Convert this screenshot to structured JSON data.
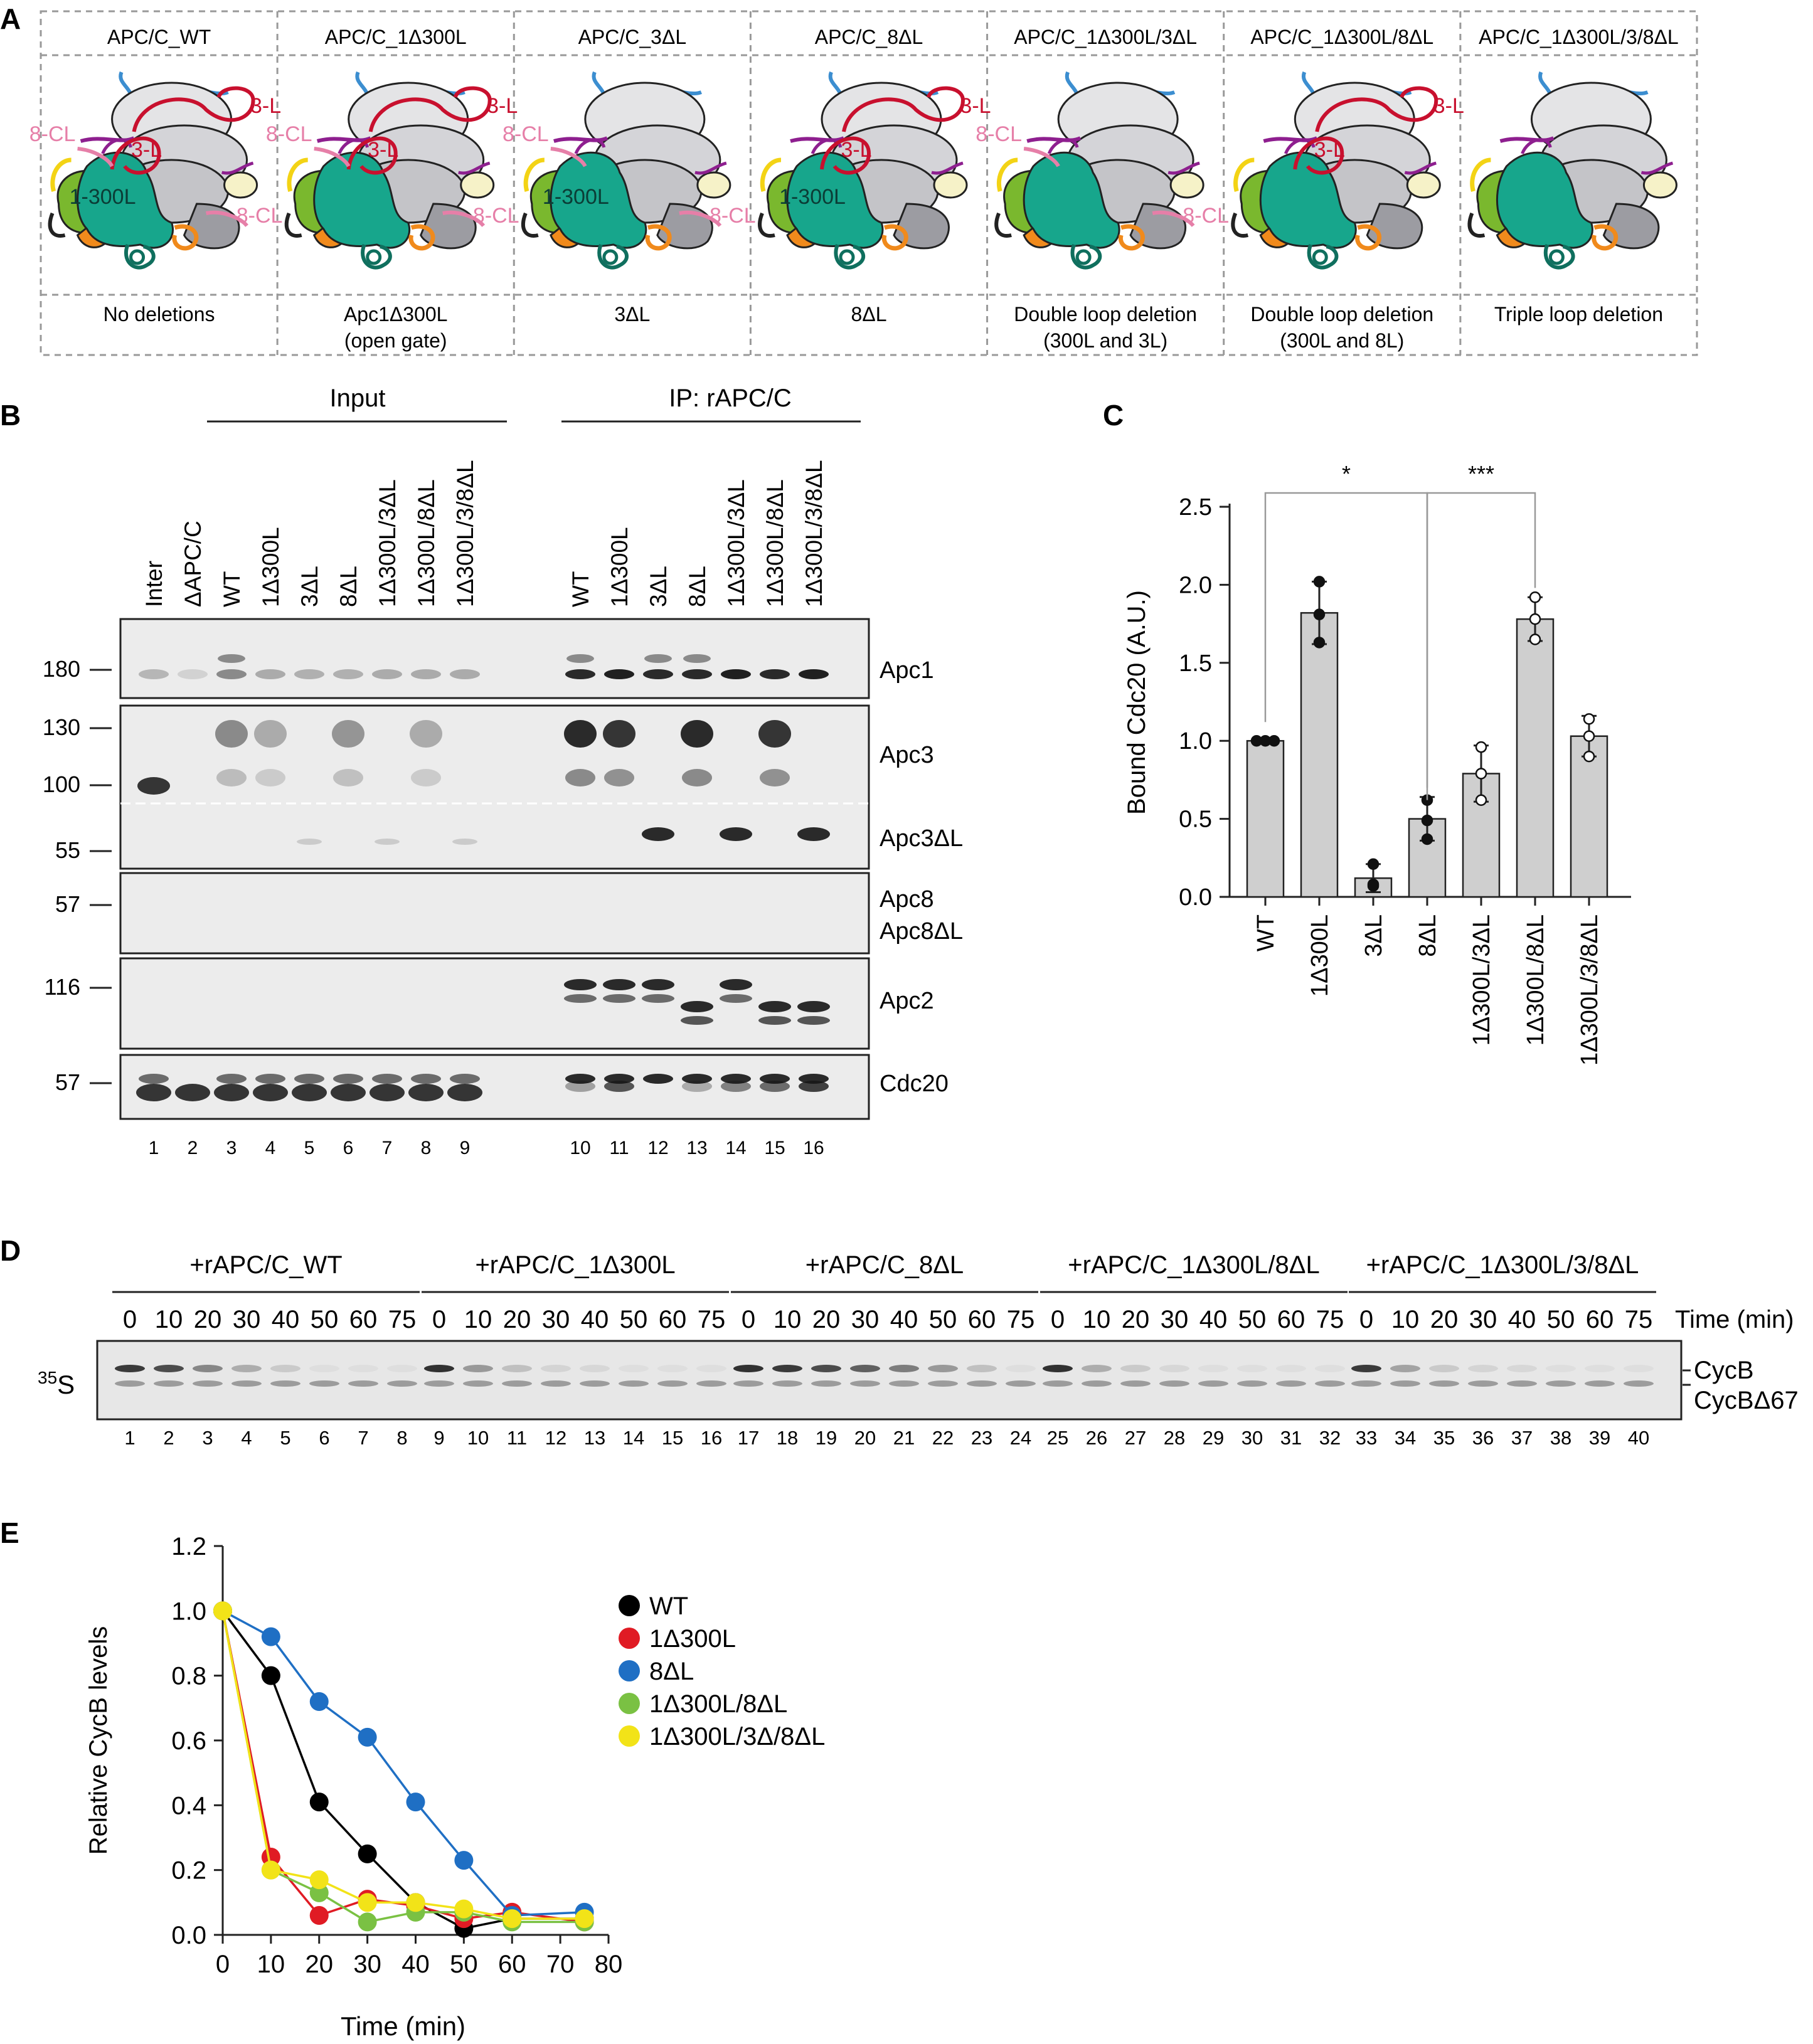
{
  "panel_labels": {
    "a": "A",
    "b": "B",
    "c": "C",
    "d": "D",
    "e": "E"
  },
  "panel_a": {
    "columns": [
      {
        "title": "APC/C_WT",
        "caption": [
          "No deletions"
        ],
        "labels": [
          "3-L",
          "8-CL",
          "3-L",
          "1-300L",
          "8-CL"
        ]
      },
      {
        "title": "APC/C_1Δ300L",
        "caption": [
          "Apc1Δ300L",
          "(open gate)"
        ],
        "labels": [
          "3-L",
          "8-CL",
          "3-L",
          "8-CL"
        ]
      },
      {
        "title": "APC/C_3ΔL",
        "caption": [
          "3ΔL"
        ],
        "labels": [
          "8-CL",
          "1-300L",
          "8-CL"
        ]
      },
      {
        "title": "APC/C_8ΔL",
        "caption": [
          "8ΔL"
        ],
        "labels": [
          "3-L",
          "3-L",
          "1-300L"
        ]
      },
      {
        "title": "APC/C_1Δ300L/3ΔL",
        "caption": [
          "Double loop deletion",
          "(300L and 3L)"
        ],
        "labels": [
          "8-CL",
          "8-CL"
        ]
      },
      {
        "title": "APC/C_1Δ300L/8ΔL",
        "caption": [
          "Double loop deletion",
          "(300L and 8L)"
        ],
        "labels": [
          "3-L",
          "3-L"
        ]
      },
      {
        "title": "APC/C_1Δ300L/3/8ΔL",
        "caption": [
          "Triple loop deletion"
        ],
        "labels": []
      }
    ]
  },
  "panel_b": {
    "input_header": "Input",
    "ip_header": "IP: rAPC/C",
    "lane_labels": [
      "Inter",
      "ΔAPC/C",
      "WT",
      "1Δ300L",
      "3ΔL",
      "8ΔL",
      "1Δ300L/3ΔL",
      "1Δ300L/8ΔL",
      "1Δ300L/3/8ΔL",
      "WT",
      "1Δ300L",
      "3ΔL",
      "8ΔL",
      "1Δ300L/3ΔL",
      "1Δ300L/8ΔL",
      "1Δ300L/3/8ΔL"
    ],
    "lane_numbers": [
      "1",
      "2",
      "3",
      "4",
      "5",
      "6",
      "7",
      "8",
      "9",
      "10",
      "11",
      "12",
      "13",
      "14",
      "15",
      "16"
    ],
    "markers": [
      "180",
      "130",
      "100",
      "55",
      "57",
      "116",
      "57"
    ],
    "band_labels": [
      "Apc1",
      "Apc3",
      "Apc3ΔL",
      "Apc8",
      "Apc8ΔL",
      "Apc2",
      "Cdc20"
    ]
  },
  "chart_data": [
    {
      "type": "bar",
      "ylabel": "Bound Cdc20 (A.U.)",
      "categories": [
        "WT",
        "1Δ300L",
        "3ΔL",
        "8ΔL",
        "1Δ300L/3ΔL",
        "1Δ300L/8ΔL",
        "1Δ300L/3/8ΔL"
      ],
      "values": [
        1.0,
        1.82,
        0.12,
        0.5,
        0.79,
        1.78,
        1.03
      ],
      "errors": [
        0.0,
        0.2,
        0.09,
        0.14,
        0.18,
        0.14,
        0.13
      ],
      "points": [
        [
          1.0,
          1.0,
          1.0
        ],
        [
          2.02,
          1.81,
          1.63
        ],
        [
          0.21,
          0.08,
          0.07
        ],
        [
          0.62,
          0.49,
          0.37
        ],
        [
          0.96,
          0.79,
          0.62
        ],
        [
          1.92,
          1.78,
          1.65
        ],
        [
          1.14,
          1.03,
          0.9
        ]
      ],
      "ylim": [
        0,
        2.5
      ],
      "yticks": [
        "0.0",
        "0.5",
        "1.0",
        "1.5",
        "2.0",
        "2.5"
      ],
      "significance": [
        {
          "from": "WT",
          "to": "8ΔL",
          "label": "*"
        },
        {
          "from": "8ΔL",
          "to": "1Δ300L/8ΔL",
          "label": "***"
        }
      ]
    },
    {
      "type": "line",
      "xlabel": "Time (min)",
      "ylabel": "Relative CycB levels",
      "x": [
        0,
        10,
        20,
        30,
        40,
        50,
        60,
        75
      ],
      "xlim": [
        0,
        80
      ],
      "ylim": [
        0,
        1.2
      ],
      "xticks": [
        "0",
        "10",
        "20",
        "30",
        "40",
        "50",
        "60",
        "70",
        "80"
      ],
      "yticks": [
        "0.0",
        "0.2",
        "0.4",
        "0.6",
        "0.8",
        "1.0",
        "1.2"
      ],
      "legend_position": "right",
      "series": [
        {
          "name": "WT",
          "color": "#000000",
          "values": [
            1.0,
            0.8,
            0.41,
            0.25,
            0.1,
            0.02,
            0.05,
            0.05
          ]
        },
        {
          "name": "1Δ300L",
          "color": "#e01b24",
          "values": [
            1.0,
            0.24,
            0.06,
            0.11,
            0.09,
            0.05,
            0.07,
            0.04
          ]
        },
        {
          "name": "8ΔL",
          "color": "#1f6fc4",
          "values": [
            1.0,
            0.92,
            0.72,
            0.61,
            0.41,
            0.23,
            0.06,
            0.07
          ]
        },
        {
          "name": "1Δ300L/8ΔL",
          "color": "#7ac143",
          "values": [
            1.0,
            0.2,
            0.13,
            0.04,
            0.07,
            0.07,
            0.04,
            0.04
          ]
        },
        {
          "name": "1Δ300L/3Δ/8ΔL",
          "color": "#f2e318",
          "values": [
            1.0,
            0.2,
            0.17,
            0.1,
            0.1,
            0.08,
            0.05,
            0.05
          ]
        }
      ]
    }
  ],
  "panel_d": {
    "groups": [
      "+rAPC/C_WT",
      "+rAPC/C_1Δ300L",
      "+rAPC/C_8ΔL",
      "+rAPC/C_1Δ300L/8ΔL",
      "+rAPC/C_1Δ300L/3/8ΔL"
    ],
    "times": [
      "0",
      "10",
      "20",
      "30",
      "40",
      "50",
      "60",
      "75"
    ],
    "time_label": "Time (min)",
    "isotope_mass": "35",
    "isotope_symbol": "S",
    "band_labels": [
      "CycB",
      "CycBΔ67"
    ],
    "lane_numbers": [
      "1",
      "2",
      "3",
      "4",
      "5",
      "6",
      "7",
      "8",
      "9",
      "10",
      "11",
      "12",
      "13",
      "14",
      "15",
      "16",
      "17",
      "18",
      "19",
      "20",
      "21",
      "22",
      "23",
      "24",
      "25",
      "26",
      "27",
      "28",
      "29",
      "30",
      "31",
      "32",
      "33",
      "34",
      "35",
      "36",
      "37",
      "38",
      "39",
      "40"
    ],
    "cycb_intensity": [
      [
        0.9,
        0.8,
        0.5,
        0.3,
        0.15,
        0.05,
        0.05,
        0.05
      ],
      [
        0.95,
        0.4,
        0.2,
        0.1,
        0.08,
        0.05,
        0.05,
        0.05
      ],
      [
        0.95,
        0.9,
        0.8,
        0.7,
        0.55,
        0.4,
        0.2,
        0.05
      ],
      [
        0.95,
        0.3,
        0.15,
        0.08,
        0.05,
        0.05,
        0.05,
        0.05
      ],
      [
        0.9,
        0.35,
        0.15,
        0.1,
        0.08,
        0.05,
        0.05,
        0.05
      ]
    ]
  },
  "colors": {
    "teal": "#17a68c",
    "red": "#c8102e",
    "pink": "#e67fa8",
    "purple": "#8e1f8f",
    "blue": "#3c8ed0",
    "green": "#7ab82e",
    "yellow": "#f3d315",
    "orange": "#f08a1c",
    "bar": "#cfcfcf"
  }
}
